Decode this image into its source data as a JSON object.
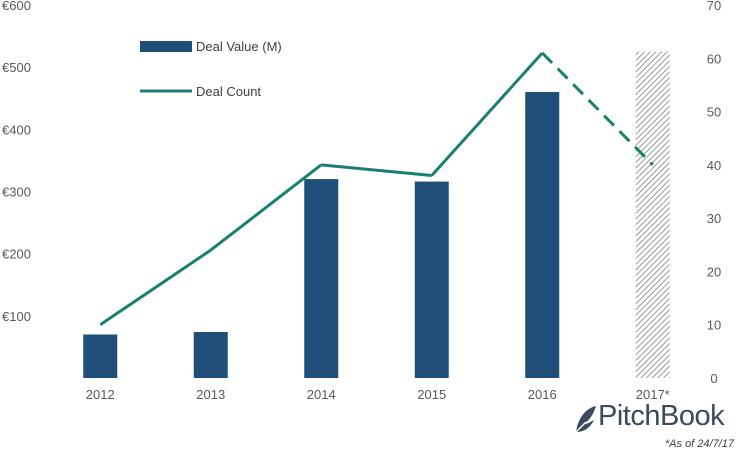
{
  "chart_data": {
    "type": "bar+line",
    "categories": [
      "2012",
      "2013",
      "2014",
      "2015",
      "2016",
      "2017*"
    ],
    "series": [
      {
        "name": "Deal Value (M)",
        "type": "bar",
        "axis": "left",
        "color": "#1f4e79",
        "values": [
          70,
          74,
          320,
          316,
          460,
          525
        ],
        "styles": [
          "solid",
          "solid",
          "solid",
          "solid",
          "solid",
          "hatched"
        ]
      },
      {
        "name": "Deal Count",
        "type": "line",
        "axis": "right",
        "color": "#1a7e70",
        "values": [
          10,
          24,
          40,
          38,
          61,
          40
        ],
        "styles": [
          "solid",
          "solid",
          "solid",
          "solid",
          "solid",
          "dashed"
        ]
      }
    ],
    "y_left": {
      "ylim": [
        0,
        600
      ],
      "ticks": [
        100,
        200,
        300,
        400,
        500,
        600
      ],
      "tick_labels": [
        "€100",
        "€200",
        "€300",
        "€400",
        "€500",
        "€600"
      ]
    },
    "y_right": {
      "ylim": [
        0,
        70
      ],
      "ticks": [
        0,
        10,
        20,
        30,
        40,
        50,
        60,
        70
      ],
      "tick_labels": [
        "0",
        "10",
        "20",
        "30",
        "40",
        "50",
        "60",
        "70"
      ]
    },
    "legend_position": "top-left",
    "grid": false
  },
  "branding": {
    "logo_text": "PitchBook",
    "footnote": "*As of 24/7/17"
  }
}
